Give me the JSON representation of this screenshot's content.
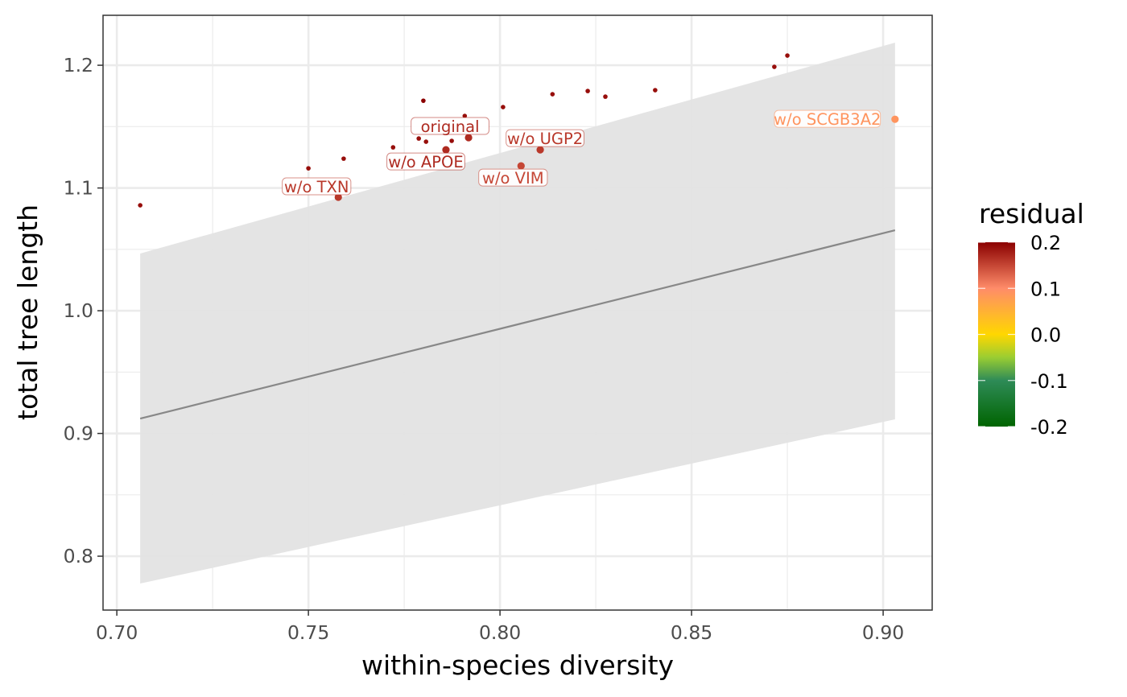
{
  "chart_data": {
    "type": "scatter",
    "title": "",
    "xlabel": "within-species diversity",
    "ylabel": "total tree length",
    "xlim": [
      0.6964,
      0.9128
    ],
    "ylim": [
      0.7561,
      1.2407
    ],
    "x_ticks": [
      0.7,
      0.75,
      0.8,
      0.85,
      0.9
    ],
    "x_tick_labels": [
      "0.70",
      "0.75",
      "0.80",
      "0.85",
      "0.90"
    ],
    "y_ticks": [
      0.8,
      0.9,
      1.0,
      1.1,
      1.2
    ],
    "y_tick_labels": [
      "0.8",
      "0.9",
      "1.0",
      "1.1",
      "1.2"
    ],
    "grid": true,
    "points": [
      {
        "x": 0.7061,
        "y": 1.0859,
        "residual": 0.19,
        "label": ""
      },
      {
        "x": 0.75,
        "y": 1.116,
        "residual": 0.19,
        "label": ""
      },
      {
        "x": 0.7592,
        "y": 1.1239,
        "residual": 0.19,
        "label": ""
      },
      {
        "x": 0.7578,
        "y": 1.0925,
        "residual": 0.16,
        "label": "w/o TXN",
        "highlight": true
      },
      {
        "x": 0.7721,
        "y": 1.1331,
        "residual": 0.19,
        "label": ""
      },
      {
        "x": 0.7788,
        "y": 1.1403,
        "residual": 0.19,
        "label": ""
      },
      {
        "x": 0.7807,
        "y": 1.1377,
        "residual": 0.19,
        "label": ""
      },
      {
        "x": 0.78,
        "y": 1.1711,
        "residual": 0.2,
        "label": ""
      },
      {
        "x": 0.7874,
        "y": 1.1384,
        "residual": 0.19,
        "label": ""
      },
      {
        "x": 0.7859,
        "y": 1.1311,
        "residual": 0.17,
        "label": "w/o APOE",
        "highlight": true
      },
      {
        "x": 0.7908,
        "y": 1.1587,
        "residual": 0.19,
        "label": ""
      },
      {
        "x": 0.7918,
        "y": 1.141,
        "residual": 0.17,
        "label": "original",
        "highlight": true
      },
      {
        "x": 0.8008,
        "y": 1.1659,
        "residual": 0.19,
        "label": ""
      },
      {
        "x": 0.8055,
        "y": 1.118,
        "residual": 0.15,
        "label": "w/o VIM",
        "highlight": true
      },
      {
        "x": 0.8105,
        "y": 1.1311,
        "residual": 0.16,
        "label": "w/o UGP2",
        "highlight": true
      },
      {
        "x": 0.8137,
        "y": 1.1764,
        "residual": 0.19,
        "label": ""
      },
      {
        "x": 0.8229,
        "y": 1.179,
        "residual": 0.19,
        "label": ""
      },
      {
        "x": 0.8275,
        "y": 1.1744,
        "residual": 0.19,
        "label": ""
      },
      {
        "x": 0.8405,
        "y": 1.1797,
        "residual": 0.19,
        "label": ""
      },
      {
        "x": 0.8716,
        "y": 1.1987,
        "residual": 0.19,
        "label": ""
      },
      {
        "x": 0.875,
        "y": 1.2079,
        "residual": 0.19,
        "label": ""
      },
      {
        "x": 0.9031,
        "y": 1.156,
        "residual": 0.09,
        "label": "w/o SCGB3A2",
        "highlight": true
      }
    ],
    "label_offsets_note": "labels placed near their points",
    "fit_line": {
      "x": [
        0.7061,
        0.9031
      ],
      "y": [
        0.9121,
        1.0656
      ],
      "color": "#888888"
    },
    "ribbon": {
      "x": [
        0.7061,
        0.9031
      ],
      "upper": [
        1.0466,
        1.2184
      ],
      "lower": [
        0.7777,
        0.9115
      ],
      "color": "#e3e3e3"
    },
    "legend": {
      "title": "residual",
      "placement": "right",
      "type": "colorbar",
      "range": [
        -0.2,
        0.2
      ],
      "ticks": [
        0.2,
        0.1,
        0.0,
        -0.1,
        -0.2
      ],
      "tick_labels": [
        "0.2",
        "0.1",
        "0.0",
        "-0.1",
        "-0.2"
      ],
      "colors": [
        {
          "value": -0.2,
          "color": "#006400"
        },
        {
          "value": -0.1,
          "color": "#2e8b57"
        },
        {
          "value": -0.05,
          "color": "#9acd32"
        },
        {
          "value": 0.0,
          "color": "#ffd700"
        },
        {
          "value": 0.1,
          "color": "#ff8c69"
        },
        {
          "value": 0.2,
          "color": "#8b0000"
        }
      ]
    }
  }
}
